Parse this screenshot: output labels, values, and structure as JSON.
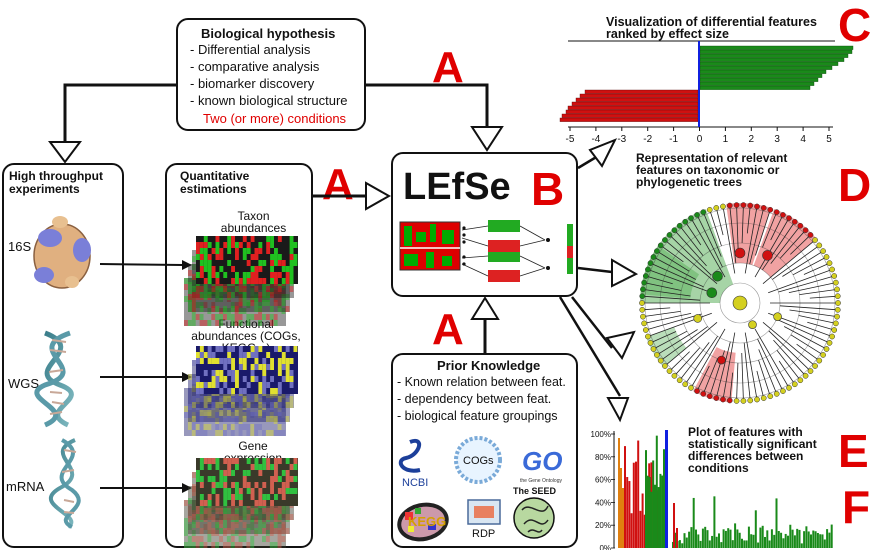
{
  "hypothesis": {
    "title": "Biological hypothesis",
    "items": [
      "- Differential analysis",
      "- comparative analysis",
      "- biomarker discovery",
      "- known biological structure"
    ],
    "conditions": "Two (or more) conditions"
  },
  "experiments": {
    "title": "High throughput experiments",
    "rows": [
      "16S",
      "WGS",
      "mRNA"
    ]
  },
  "quantitative": {
    "title": "Quantitative estimations",
    "items": [
      "Taxon abundances",
      "Functional abundances (COGs, KEGG...)",
      "Gene expression"
    ]
  },
  "lefse": {
    "title": "LEfSe"
  },
  "prior": {
    "title": "Prior Knowledge",
    "items": [
      "- Known relation between feat.",
      "- dependency between feat.",
      "- biological feature groupings"
    ],
    "logos": [
      "NCBI",
      "COGs",
      "GO",
      "the Gene Ontology",
      "The SEED",
      "KEGG",
      "RDP"
    ]
  },
  "labels": {
    "a": "A",
    "b": "B",
    "c": "C",
    "d": "D",
    "e": "E",
    "f": "F"
  },
  "panel_c": {
    "title": "Visualization of differential features ranked by effect size",
    "ticks": [
      "-5",
      "-4",
      "-3",
      "-2",
      "-1",
      "0",
      "1",
      "2",
      "3",
      "4",
      "5"
    ]
  },
  "panel_d": {
    "title": "Representation of relevant features on taxonomic or phylogenetic trees"
  },
  "panel_e": {
    "title": "Plot of features with statistically significant differences between conditions",
    "yticks": [
      "100%",
      "80%",
      "60%",
      "40%",
      "20%",
      "0%"
    ]
  },
  "colors": {
    "accent": "#e00000",
    "green": "#1a8a1a",
    "red": "#d01010",
    "blue": "#1020e0"
  }
}
